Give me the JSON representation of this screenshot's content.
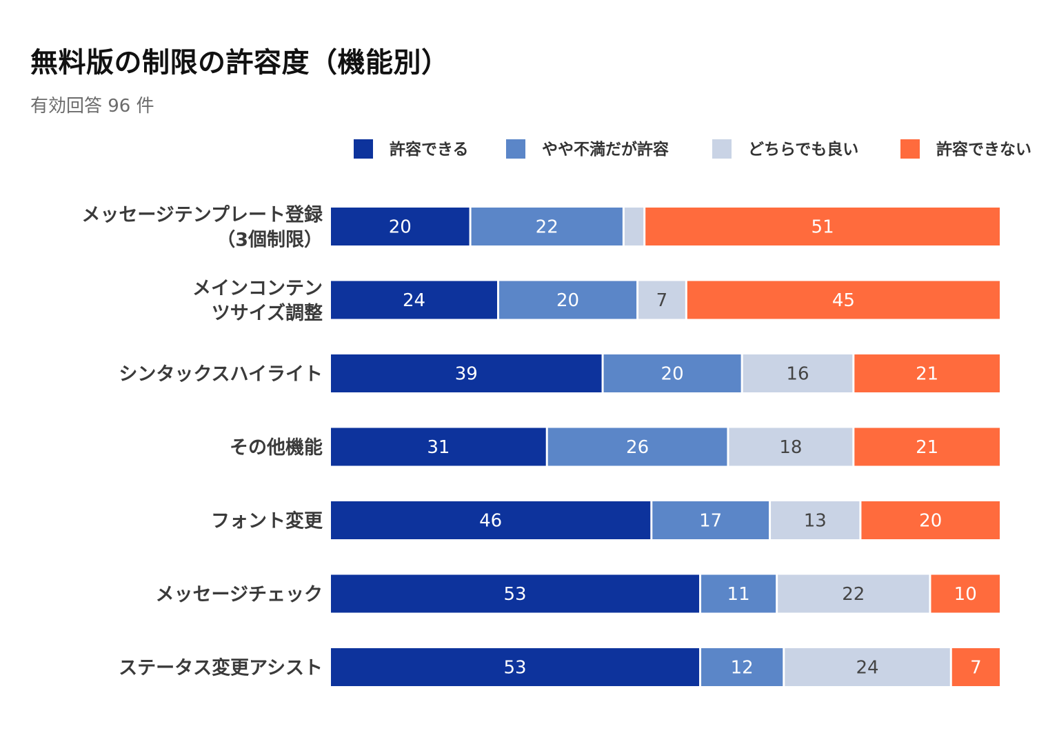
{
  "title": "無料版の制限の許容度（機能別）",
  "subtitle": "有効回答 96 件",
  "chart_data": {
    "type": "bar",
    "orientation": "horizontal",
    "stacked": true,
    "normalized": true,
    "legend_position": "top-right",
    "grid": false,
    "categories": [
      [
        "メッセージテンプレート登録",
        "（3個制限）"
      ],
      [
        "メインコンテン",
        "ツサイズ調整"
      ],
      [
        "シンタックスハイライト"
      ],
      [
        "その他機能"
      ],
      [
        "フォント変更"
      ],
      [
        "メッセージチェック"
      ],
      [
        "ステータス変更アシスト"
      ]
    ],
    "series": [
      {
        "name": "許容できる",
        "color": "#0d339c",
        "label_color": "#ffffff",
        "values": [
          20,
          24,
          39,
          31,
          46,
          53,
          53
        ]
      },
      {
        "name": "やや不満だが許容",
        "color": "#5b86c8",
        "label_color": "#ffffff",
        "values": [
          22,
          20,
          20,
          26,
          17,
          11,
          12
        ]
      },
      {
        "name": "どちらでも良い",
        "color": "#c9d3e5",
        "label_color": "#444444",
        "values": [
          3,
          7,
          16,
          18,
          13,
          22,
          24
        ]
      },
      {
        "name": "許容できない",
        "color": "#ff6b3d",
        "label_color": "#ffffff",
        "values": [
          51,
          45,
          21,
          21,
          20,
          10,
          7
        ]
      }
    ],
    "hidden_value_labels": [
      [
        0,
        2
      ]
    ]
  }
}
